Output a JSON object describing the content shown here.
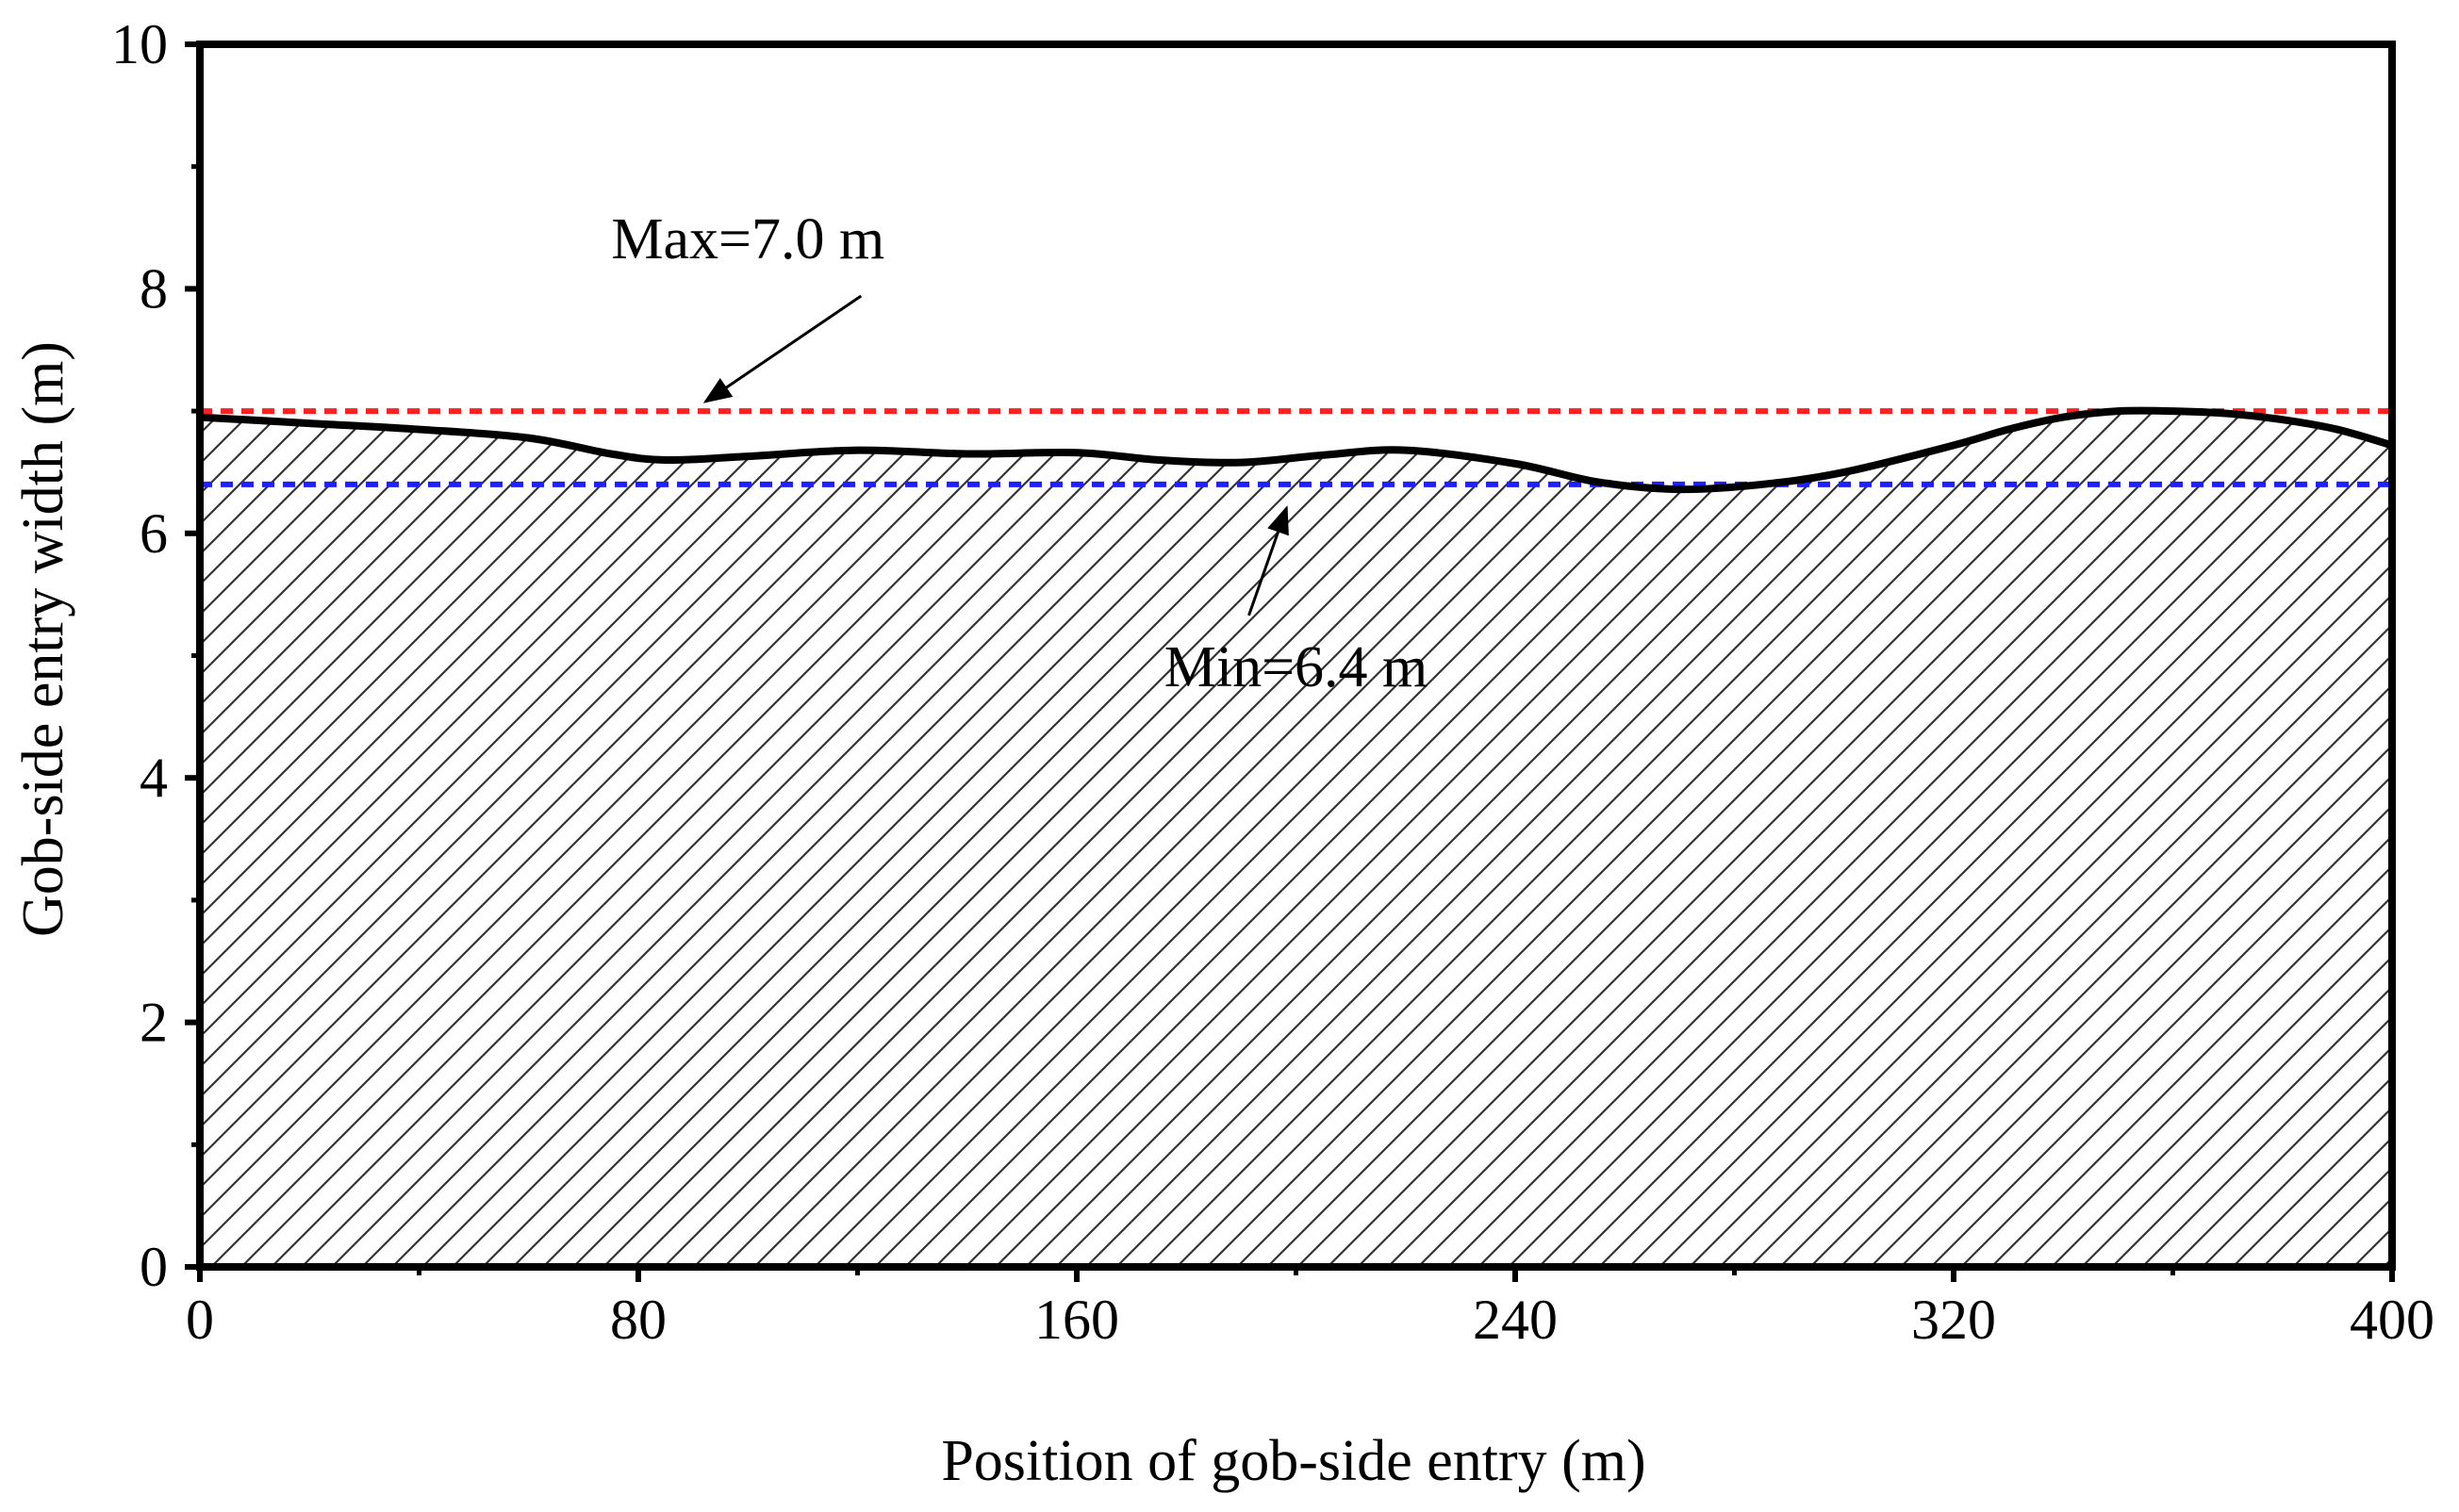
{
  "chart_data": {
    "type": "area",
    "title": "",
    "xlabel": "Position of gob-side entry (m)",
    "ylabel": "Gob-side entry width (m)",
    "xlim": [
      0,
      400
    ],
    "ylim": [
      0,
      10
    ],
    "xticks": [
      0,
      80,
      160,
      240,
      320,
      400
    ],
    "yticks": [
      0,
      2,
      4,
      6,
      8,
      10
    ],
    "grid": false,
    "fill_pattern": "diagonal-hatch",
    "series": [
      {
        "x": [
          0,
          20,
          40,
          60,
          75,
          85,
          100,
          120,
          140,
          160,
          175,
          190,
          205,
          220,
          240,
          255,
          270,
          285,
          300,
          320,
          330,
          340,
          350,
          360,
          370,
          380,
          390,
          400
        ],
        "y": [
          6.95,
          6.9,
          6.85,
          6.78,
          6.65,
          6.6,
          6.63,
          6.68,
          6.65,
          6.66,
          6.6,
          6.58,
          6.64,
          6.68,
          6.57,
          6.42,
          6.36,
          6.4,
          6.5,
          6.72,
          6.85,
          6.95,
          7.0,
          7.0,
          6.98,
          6.93,
          6.85,
          6.72
        ]
      }
    ],
    "reference_lines": [
      {
        "y": 7.0,
        "color": "#ff2020",
        "style": "dashed"
      },
      {
        "y": 6.4,
        "color": "#2020ff",
        "style": "dashed"
      }
    ],
    "annotations": [
      {
        "text": "Max=7.0 m",
        "text_x": 100,
        "text_y": 8.25,
        "arrow_to_x": 100,
        "arrow_to_y": 7.0
      },
      {
        "text": "Min=6.4 m",
        "text_x": 200,
        "text_y": 4.75,
        "arrow_to_x": 202,
        "arrow_to_y": 6.4
      }
    ]
  }
}
